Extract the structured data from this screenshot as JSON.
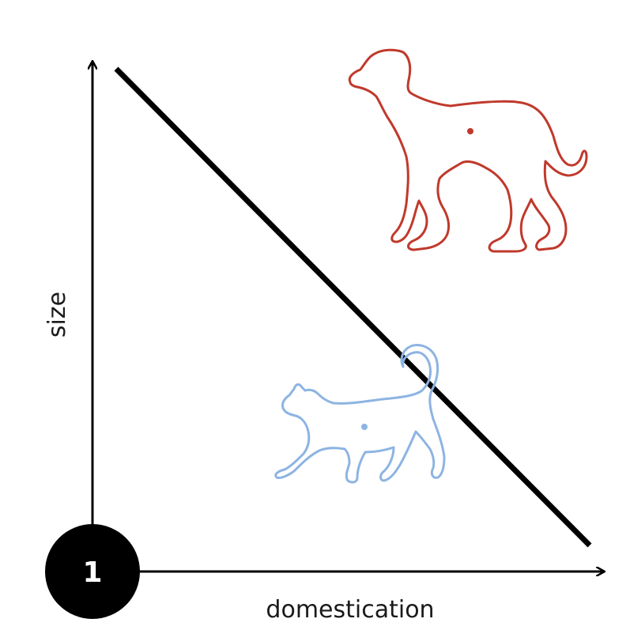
{
  "axes": {
    "x_label": "domestication",
    "y_label": "size"
  },
  "badge": {
    "label": "1"
  },
  "animals": [
    {
      "icon": "dog-icon",
      "color": "#c0392b"
    },
    {
      "icon": "cat-icon",
      "color": "#8db4e2"
    }
  ],
  "colors": {
    "axis": "#000000",
    "divider": "#000000",
    "badge": "#000000"
  }
}
